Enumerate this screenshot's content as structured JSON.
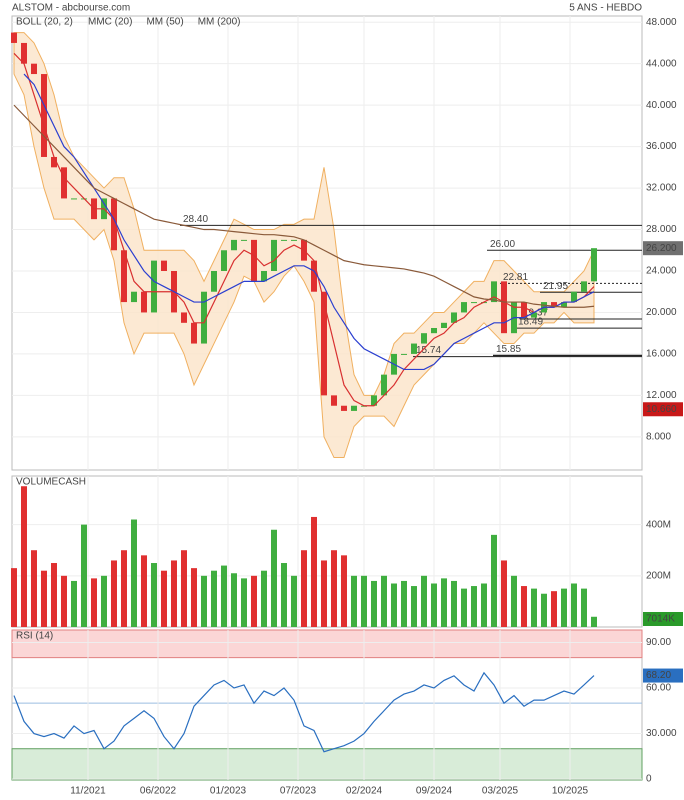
{
  "chart_data": [
    {
      "type": "candlestick",
      "title": "ALSTOM - abcbourse.com",
      "subtitle": "5 ANS - HEBDO",
      "xlim": [
        -0.2,
        62.8
      ],
      "xticks": [
        {
          "value": 7.4,
          "label": "11/2021"
        },
        {
          "value": 14.4,
          "label": "06/2022"
        },
        {
          "value": 21.4,
          "label": "01/2023"
        },
        {
          "value": 28.4,
          "label": "07/2023"
        },
        {
          "value": 35,
          "label": "02/2024"
        },
        {
          "value": 42,
          "label": "09/2024"
        },
        {
          "value": 48.6,
          "label": "03/2025"
        },
        {
          "value": 55.6,
          "label": "10/2025"
        }
      ],
      "ylim": [
        4.8,
        48.6
      ],
      "yticks": [
        {
          "value": 48,
          "label": "48.000"
        },
        {
          "value": 44,
          "label": "44.000"
        },
        {
          "value": 40,
          "label": "40.000"
        },
        {
          "value": 36,
          "label": "36.000"
        },
        {
          "value": 32,
          "label": "32.000"
        },
        {
          "value": 28,
          "label": "28.000"
        },
        {
          "value": 24,
          "label": "24.000"
        },
        {
          "value": 20,
          "label": "20.000"
        },
        {
          "value": 16,
          "label": "16.000"
        },
        {
          "value": 12,
          "label": "12.000"
        },
        {
          "value": 8,
          "label": "8.000"
        }
      ],
      "up_color": "#3fae3f",
      "down_color": "#e03030",
      "open": [
        47,
        46,
        44,
        43,
        35,
        34,
        31,
        31,
        31,
        29,
        31,
        26,
        21,
        22,
        20,
        25,
        24,
        20,
        19,
        17,
        22,
        24,
        26,
        27,
        27,
        23,
        24,
        27,
        27,
        27,
        25,
        22,
        12,
        11,
        10.5,
        11,
        11,
        12,
        14,
        16,
        16,
        17,
        18,
        18.5,
        19,
        20,
        21,
        21,
        21,
        23,
        18,
        21,
        19.5,
        20,
        21,
        20.5,
        21,
        22,
        23
      ],
      "close": [
        46,
        44,
        43,
        35,
        34,
        31,
        31,
        31,
        29,
        31,
        26,
        21,
        22,
        20,
        25,
        24,
        20,
        19,
        17,
        22,
        24,
        26,
        27,
        27,
        23,
        24,
        27,
        27,
        27,
        25,
        22,
        12,
        11,
        10.5,
        11,
        11,
        12,
        14,
        16,
        16,
        17,
        18,
        18.5,
        19,
        20,
        21,
        21,
        21,
        23,
        18,
        21,
        19.5,
        20,
        21,
        20.5,
        21,
        22,
        23,
        26.2
      ],
      "bollinger": {
        "name": "BOLL (20, 2)",
        "color": "#f0b060",
        "upper": [
          47,
          47,
          46,
          44,
          41,
          37,
          35,
          34,
          33,
          32,
          33,
          33,
          30,
          26,
          26,
          26,
          26,
          26,
          25,
          23,
          25,
          27,
          29,
          28.5,
          28,
          28,
          28,
          28.5,
          28.5,
          29,
          29,
          34,
          28,
          20,
          14,
          12,
          12,
          14,
          17,
          18,
          18,
          19,
          20,
          20,
          21,
          22,
          23,
          23,
          25,
          25,
          24,
          23,
          22,
          22,
          22,
          22,
          23,
          24,
          26
        ],
        "lower": [
          43,
          41,
          36,
          32,
          29,
          29,
          29,
          28,
          27,
          28,
          25,
          19,
          16,
          18,
          18,
          18,
          18,
          16,
          13,
          15,
          17,
          19,
          21,
          23.5,
          23,
          21,
          22,
          23.5,
          24.5,
          23,
          21,
          8,
          6,
          6,
          9,
          10,
          10,
          10,
          9,
          11,
          13,
          14,
          15,
          16,
          17,
          17,
          18,
          19,
          18,
          17,
          17,
          18,
          18,
          19,
          19,
          20,
          19,
          19,
          19
        ]
      },
      "series": [
        {
          "name": "MMC (20)",
          "color": "#d83030",
          "values": [
            45,
            44,
            41,
            38,
            35,
            33,
            32,
            31,
            30,
            30,
            29,
            26,
            23,
            22,
            22,
            22,
            22,
            21,
            19,
            19,
            21,
            23,
            25,
            26,
            25.5,
            24.5,
            25,
            26,
            26.5,
            26,
            25,
            21,
            17,
            13,
            11.5,
            11,
            11,
            12,
            13,
            14.5,
            15.5,
            16.5,
            17.5,
            18,
            19,
            19.5,
            20.5,
            21,
            21.5,
            21,
            20.5,
            20.5,
            20,
            20.5,
            20.5,
            21,
            21,
            21.5,
            22.5
          ]
        },
        {
          "name": "MM (50)",
          "color": "#2b3fd0",
          "values": [
            null,
            43,
            42,
            40,
            38,
            36,
            35,
            33.5,
            32,
            30.5,
            29,
            27,
            25.5,
            24,
            23,
            22.5,
            22,
            21.5,
            21,
            21,
            21.5,
            22,
            22.5,
            23,
            23,
            23,
            23.5,
            24,
            24.5,
            24.5,
            24,
            22.5,
            20.5,
            19,
            17.5,
            16.5,
            16,
            15.5,
            15,
            14.5,
            14.5,
            14.5,
            15,
            16,
            17,
            17.5,
            18,
            18.5,
            19,
            19,
            19.5,
            19.5,
            20,
            20.5,
            20.5,
            21,
            21,
            21.5,
            22
          ]
        },
        {
          "name": "MM (200)",
          "color": "#8a5a3a",
          "values": [
            40,
            39,
            38,
            37,
            36,
            35,
            34,
            33,
            32,
            31.5,
            31,
            30.5,
            30,
            29.5,
            29,
            28.8,
            28.6,
            28.4,
            28.2,
            28,
            28,
            27.9,
            27.8,
            27.7,
            27.6,
            27.5,
            27.5,
            27.4,
            27.3,
            27,
            26.5,
            26,
            25.5,
            25,
            24.8,
            24.6,
            24.5,
            24.4,
            24.3,
            24.2,
            24,
            23.8,
            23.5,
            23,
            22.5,
            22,
            21.5,
            21.3,
            21.2,
            21,
            21,
            21,
            20.8,
            20.7,
            20.6,
            20.5,
            20.5,
            20.5,
            20.6
          ]
        }
      ],
      "levels": [
        {
          "value": 28.4,
          "label": "28.40",
          "from": 16.6
        },
        {
          "value": 26,
          "label": "26.00",
          "from": 47.3
        },
        {
          "value": 22.81,
          "label": "22.81",
          "from": 48.6
        },
        {
          "value": 21.95,
          "label": "21.95",
          "from": 52.6
        },
        {
          "value": 19.37,
          "label": "19.37",
          "from": 50.6
        },
        {
          "value": 18.49,
          "label": "18.49",
          "from": 50.1
        },
        {
          "value": 15.74,
          "label": "15.74",
          "from": 39.9
        },
        {
          "value": 15.85,
          "label": "15.85",
          "from": 47.9
        }
      ],
      "markers": [
        {
          "value": 26.2,
          "label": "26.200",
          "color": "#707070"
        },
        {
          "value": 10.66,
          "label": "10.660",
          "color": "#c81818"
        }
      ]
    },
    {
      "type": "bar",
      "title": "VOLUMECASH",
      "ylim": [
        0,
        590
      ],
      "yticks": [
        {
          "value": 400,
          "label": "400M"
        },
        {
          "value": 200,
          "label": "200M"
        }
      ],
      "values": [
        230,
        550,
        300,
        220,
        250,
        200,
        180,
        400,
        190,
        200,
        260,
        300,
        420,
        280,
        250,
        220,
        260,
        300,
        230,
        200,
        220,
        240,
        210,
        190,
        200,
        220,
        380,
        250,
        200,
        300,
        430,
        260,
        300,
        280,
        200,
        200,
        180,
        200,
        170,
        180,
        160,
        200,
        170,
        190,
        180,
        150,
        160,
        170,
        360,
        260,
        200,
        160,
        150,
        130,
        140,
        150,
        170,
        150,
        40
      ],
      "markers": [
        {
          "value": 7.014,
          "label": "7014K",
          "color": "#2a9a2a"
        }
      ]
    },
    {
      "type": "line",
      "title": "RSI (14)",
      "color": "#2a6fc0",
      "ylim": [
        -0.6,
        98.2
      ],
      "yticks": [
        {
          "value": 90,
          "label": "90.00"
        },
        {
          "value": 60,
          "label": "60.00"
        },
        {
          "value": 30,
          "label": "30.000"
        },
        0
      ],
      "levels": [
        80,
        50,
        20
      ],
      "values": [
        55,
        38,
        30,
        28,
        30,
        27,
        35,
        30,
        32,
        20,
        25,
        35,
        40,
        45,
        40,
        28,
        20,
        30,
        48,
        55,
        62,
        65,
        60,
        62,
        50,
        58,
        55,
        60,
        52,
        35,
        32,
        18,
        20,
        22,
        25,
        30,
        38,
        45,
        52,
        56,
        58,
        62,
        60,
        65,
        68,
        62,
        58,
        70,
        62,
        50,
        55,
        48,
        52,
        52,
        55,
        58,
        56,
        62,
        68.2
      ],
      "markers": [
        {
          "value": 68.2,
          "label": "68.20",
          "color": "#2a6fc0"
        }
      ]
    }
  ]
}
